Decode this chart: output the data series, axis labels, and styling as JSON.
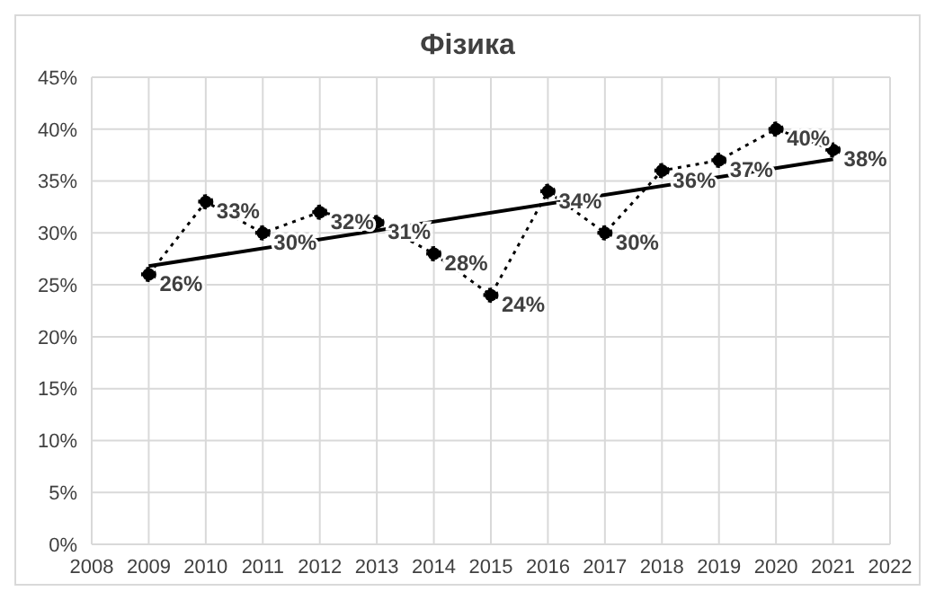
{
  "chart_data": {
    "type": "line",
    "title": "Фізика",
    "x": [
      2009,
      2010,
      2011,
      2012,
      2013,
      2014,
      2015,
      2016,
      2017,
      2018,
      2019,
      2020,
      2021
    ],
    "series": [
      {
        "type": "line",
        "color": "#000000",
        "marker": "circle",
        "line_style": "dotted",
        "values": [
          26,
          33,
          30,
          32,
          31,
          28,
          24,
          34,
          30,
          36,
          37,
          40,
          38
        ],
        "value_labels": [
          "26%",
          "33%",
          "30%",
          "32%",
          "31%",
          "28%",
          "24%",
          "34%",
          "30%",
          "36%",
          "37%",
          "40%",
          "38%"
        ]
      },
      {
        "type": "line",
        "color": "#000000",
        "marker": "none",
        "line_style": "solid",
        "x": [
          2009,
          2021
        ],
        "values": [
          26.8,
          37.1
        ]
      }
    ],
    "xlim": [
      2008,
      2022
    ],
    "xticks": [
      2008,
      2009,
      2010,
      2011,
      2012,
      2013,
      2014,
      2015,
      2016,
      2017,
      2018,
      2019,
      2020,
      2021,
      2022
    ],
    "ylim": [
      0,
      45
    ],
    "yticks": [
      {
        "value": 0,
        "label": "0%"
      },
      {
        "value": 5,
        "label": "5%"
      },
      {
        "value": 10,
        "label": "10%"
      },
      {
        "value": 15,
        "label": "15%"
      },
      {
        "value": 20,
        "label": "20%"
      },
      {
        "value": 25,
        "label": "25%"
      },
      {
        "value": 30,
        "label": "30%"
      },
      {
        "value": 35,
        "label": "35%"
      },
      {
        "value": 40,
        "label": "40%"
      },
      {
        "value": 45,
        "label": "45%"
      }
    ],
    "grid": true
  }
}
